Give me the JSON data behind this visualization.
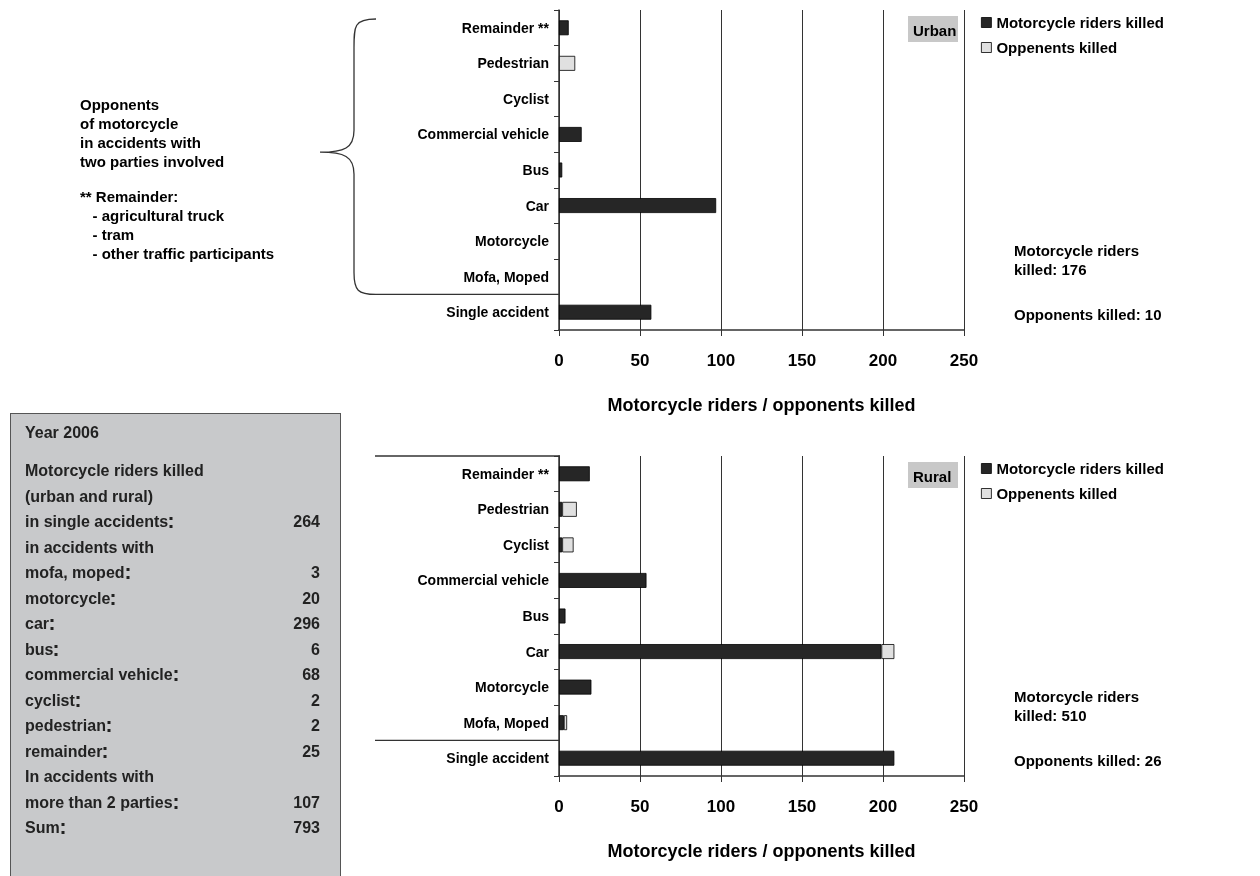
{
  "chart_data": [
    {
      "type": "bar",
      "orientation": "horizontal",
      "stacked": true,
      "xlabel": "Motorcycle riders / opponents killed",
      "categories": [
        "Remainder **",
        "Pedestrian",
        "Cyclist",
        "Commercial vehicle",
        "Bus",
        "Car",
        "Motorcycle",
        "Mofa, Moped",
        "Single accident"
      ],
      "series": [
        {
          "name": "Motorcycle riders killed",
          "color": "#262626",
          "values": [
            6,
            0,
            0,
            14,
            2,
            97,
            0,
            0,
            57
          ]
        },
        {
          "name": "Oppenents killed",
          "color": "#e0e0e0",
          "values": [
            0,
            10,
            0,
            0,
            0,
            0,
            0,
            0,
            0
          ]
        }
      ],
      "xlim": [
        0,
        250
      ],
      "xticks": [
        0,
        50,
        100,
        150,
        200,
        250
      ],
      "grid": "x",
      "legend": "right",
      "annotations": [
        "Urban",
        "Opponents\nof motorcycle\nin accidents with\ntwo parties involved",
        "** Remainder:\n   - agricultural truck\n   - tram\n   - other traffic participants",
        "Motorcycle riders\nkilled: 176",
        "Opponents killed: 10"
      ]
    },
    {
      "type": "bar",
      "orientation": "horizontal",
      "stacked": true,
      "xlabel": "Motorcycle riders / opponents killed",
      "categories": [
        "Remainder **",
        "Pedestrian",
        "Cyclist",
        "Commercial vehicle",
        "Bus",
        "Car",
        "Motorcycle",
        "Mofa, Moped",
        "Single accident"
      ],
      "series": [
        {
          "name": "Motorcycle riders killed",
          "color": "#262626",
          "values": [
            19,
            2,
            2,
            54,
            4,
            199,
            20,
            3,
            207
          ]
        },
        {
          "name": "Oppenents killed",
          "color": "#e0e0e0",
          "values": [
            0,
            9,
            7,
            0,
            0,
            8,
            0,
            2,
            0
          ]
        }
      ],
      "xlim": [
        0,
        250
      ],
      "xticks": [
        0,
        50,
        100,
        150,
        200,
        250
      ],
      "grid": "x",
      "legend": "right",
      "annotations": [
        "Rural",
        "Motorcycle riders\nkilled: 510",
        "Opponents killed: 26"
      ]
    },
    {
      "type": "other",
      "title": "Year 2006",
      "categories": [
        "Motorcycle riders killed",
        "(urban and rural)",
        "in single accidents",
        "in accidents with",
        "mofa, moped",
        "motorcycle",
        "car",
        "bus",
        "commercial vehicle",
        "cyclist",
        "pedestrian",
        "remainder",
        "In accidents with",
        "more than 2 parties",
        "Sum"
      ],
      "values": [
        null,
        null,
        264,
        null,
        3,
        20,
        296,
        6,
        68,
        2,
        2,
        25,
        null,
        107,
        793
      ],
      "data_labels": true
    }
  ]
}
